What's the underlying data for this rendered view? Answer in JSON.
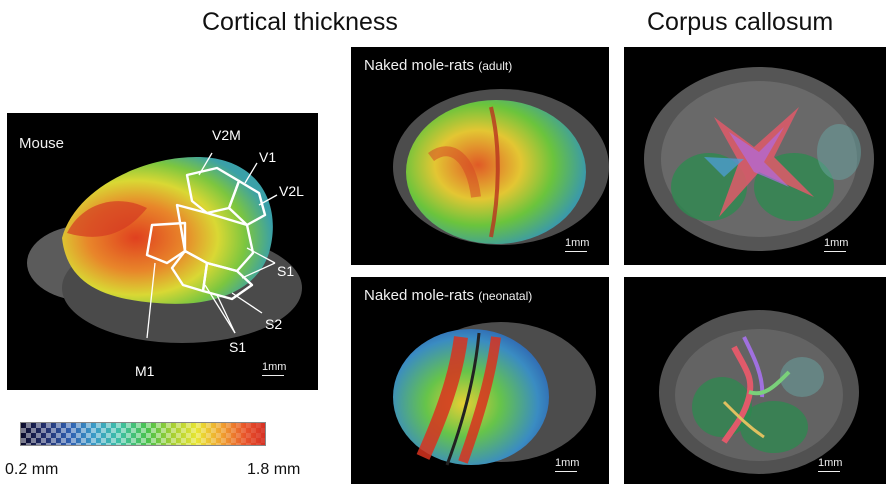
{
  "titles": {
    "cortical_thickness": "Cortical thickness",
    "corpus_callosum": "Corpus callosum"
  },
  "panels": {
    "mouse": {
      "label": "Mouse",
      "regions": {
        "v2m": "V2M",
        "v1": "V1",
        "v2l": "V2L",
        "s1_right": "S1",
        "s2": "S2",
        "s1_bottom": "S1",
        "m1": "M1"
      },
      "scale": "1mm"
    },
    "nmr_adult": {
      "label": "Naked mole-rats",
      "label_suffix": "(adult)",
      "scale": "1mm"
    },
    "nmr_neonatal": {
      "label": "Naked mole-rats",
      "label_suffix": "(neonatal)",
      "scale": "1mm"
    },
    "cc_adult": {
      "scale": "1mm"
    },
    "cc_neonatal": {
      "scale": "1mm"
    }
  },
  "colorbar": {
    "min_label": "0.2 mm",
    "max_label": "1.8 mm",
    "colors": [
      "#0b0b2a",
      "#2f5fb0",
      "#3dbfa6",
      "#4bc24a",
      "#e8e534",
      "#f0a330",
      "#d63024"
    ]
  }
}
